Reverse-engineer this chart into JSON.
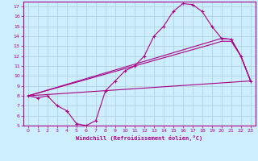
{
  "xlabel": "Windchill (Refroidissement éolien,°C)",
  "bg_color": "#cceeff",
  "line_color": "#aa0088",
  "grid_color": "#aaccdd",
  "xlim": [
    -0.5,
    23.5
  ],
  "ylim": [
    5,
    17.5
  ],
  "xticks": [
    0,
    1,
    2,
    3,
    4,
    5,
    6,
    7,
    8,
    9,
    10,
    11,
    12,
    13,
    14,
    15,
    16,
    17,
    18,
    19,
    20,
    21,
    22,
    23
  ],
  "yticks": [
    5,
    6,
    7,
    8,
    9,
    10,
    11,
    12,
    13,
    14,
    15,
    16,
    17
  ],
  "line1_x": [
    0,
    1,
    2,
    3,
    4,
    5,
    6,
    7,
    8,
    9,
    10,
    11,
    12,
    13,
    14,
    15,
    16,
    17,
    18,
    19,
    20,
    21,
    22,
    23
  ],
  "line1_y": [
    8.0,
    7.8,
    8.0,
    7.0,
    6.5,
    5.2,
    5.0,
    5.5,
    8.5,
    9.5,
    10.5,
    11.0,
    12.0,
    14.0,
    15.0,
    16.5,
    17.3,
    17.2,
    16.5,
    15.0,
    13.8,
    13.7,
    12.0,
    9.5
  ],
  "line2_x": [
    0,
    23
  ],
  "line2_y": [
    8.0,
    9.5
  ],
  "line3_x": [
    0,
    19,
    20,
    21,
    22,
    23
  ],
  "line3_y": [
    8.0,
    13.5,
    13.8,
    13.7,
    12.0,
    9.5
  ],
  "line4_x": [
    0,
    19,
    20,
    21,
    22,
    23
  ],
  "line4_y": [
    8.0,
    13.2,
    13.5,
    13.5,
    12.0,
    9.5
  ]
}
